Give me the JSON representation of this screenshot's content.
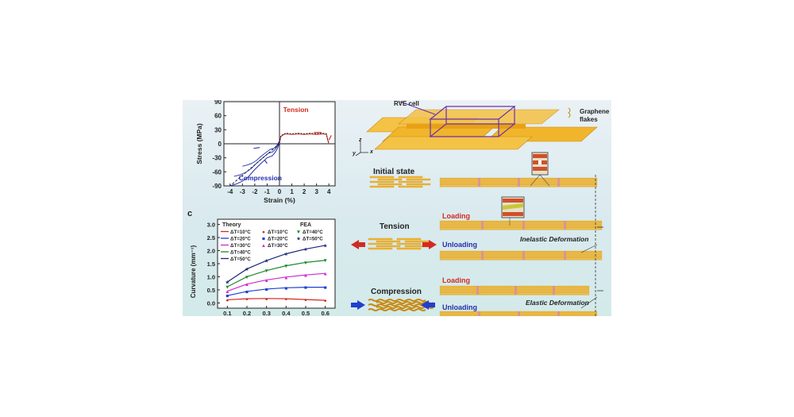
{
  "panel_c_label": "c",
  "chart_data": [
    {
      "type": "line",
      "title": "",
      "xlabel": "Strain (%)",
      "ylabel": "Stress (MPa)",
      "xlim": [
        -4.5,
        4.5
      ],
      "ylim": [
        -90,
        90
      ],
      "x_ticks": [
        "-4",
        "-3",
        "-2",
        "-1",
        "0",
        "1",
        "2",
        "3",
        "4"
      ],
      "y_ticks": [
        "-90",
        "-60",
        "-30",
        "0",
        "30",
        "60",
        "90"
      ],
      "annotations": [
        "Tension",
        "Compression"
      ],
      "series": [
        {
          "x": [
            0,
            0.1,
            0.3,
            0.5,
            1,
            1.5,
            2,
            2.5,
            3,
            3.5,
            3.8,
            3.9,
            4.0
          ],
          "y": [
            0,
            15,
            19,
            21,
            20,
            21,
            20,
            21,
            20,
            21,
            20,
            8,
            0
          ]
        },
        {
          "x": [
            0,
            -0.1,
            -0.2,
            -0.4,
            -0.6,
            -1,
            -1.5,
            -2,
            -2.5,
            -3,
            -3.5,
            -4
          ],
          "y": [
            0,
            -5,
            -12,
            -20,
            -26,
            -30,
            -42,
            -55,
            -70,
            -80,
            -86,
            -90
          ]
        }
      ]
    },
    {
      "type": "line",
      "title": "",
      "xlabel": "",
      "ylabel": "Curvature (mm⁻¹)",
      "xlim": [
        0.05,
        0.65
      ],
      "ylim": [
        -0.2,
        3.2
      ],
      "x_ticks": [
        "0.1",
        "0.2",
        "0.3",
        "0.4",
        "0.5",
        "0.6"
      ],
      "y_ticks": [
        "0.0",
        "0.5",
        "1.0",
        "1.5",
        "2.0",
        "2.5",
        "3.0"
      ],
      "legend_headers": [
        "Theory",
        "FEA"
      ],
      "x": [
        0.1,
        0.2,
        0.3,
        0.4,
        0.5,
        0.6
      ],
      "series": [
        {
          "name": "ΔT=10°C",
          "color": "#d22a22",
          "marker": "●",
          "values": [
            0.12,
            0.16,
            0.17,
            0.16,
            0.13,
            0.1
          ]
        },
        {
          "name": "ΔT=20°C",
          "color": "#1f3fd0",
          "marker": "■",
          "values": [
            0.28,
            0.44,
            0.53,
            0.58,
            0.6,
            0.6
          ]
        },
        {
          "name": "ΔT=30°C",
          "color": "#d12ad1",
          "marker": "▲",
          "values": [
            0.45,
            0.72,
            0.88,
            0.99,
            1.07,
            1.13
          ]
        },
        {
          "name": "ΔT=40°C",
          "color": "#1f8a2a",
          "marker": "▼",
          "values": [
            0.62,
            1.0,
            1.24,
            1.42,
            1.55,
            1.63
          ]
        },
        {
          "name": "ΔT=50°C",
          "color": "#1a2a7a",
          "marker": "★",
          "values": [
            0.8,
            1.3,
            1.62,
            1.88,
            2.06,
            2.2
          ]
        }
      ]
    }
  ],
  "schematic": {
    "rve_label": "RVE cell",
    "graphene_label": "Graphene flakes",
    "axis_z": "z",
    "axis_y": "y",
    "axis_x": "x",
    "initial_state": "Initial state",
    "tension": "Tension",
    "compression": "Compression",
    "loading": "Loading",
    "unloading": "Unloading",
    "inelastic": "Inelastic Deformation",
    "elastic": "Elastic Deformation"
  },
  "colors": {
    "red": "#d22a22",
    "blue": "#2430b0",
    "flake": "#f2b730",
    "flake_edge": "#c98a12",
    "pink": "#d98aa6"
  }
}
